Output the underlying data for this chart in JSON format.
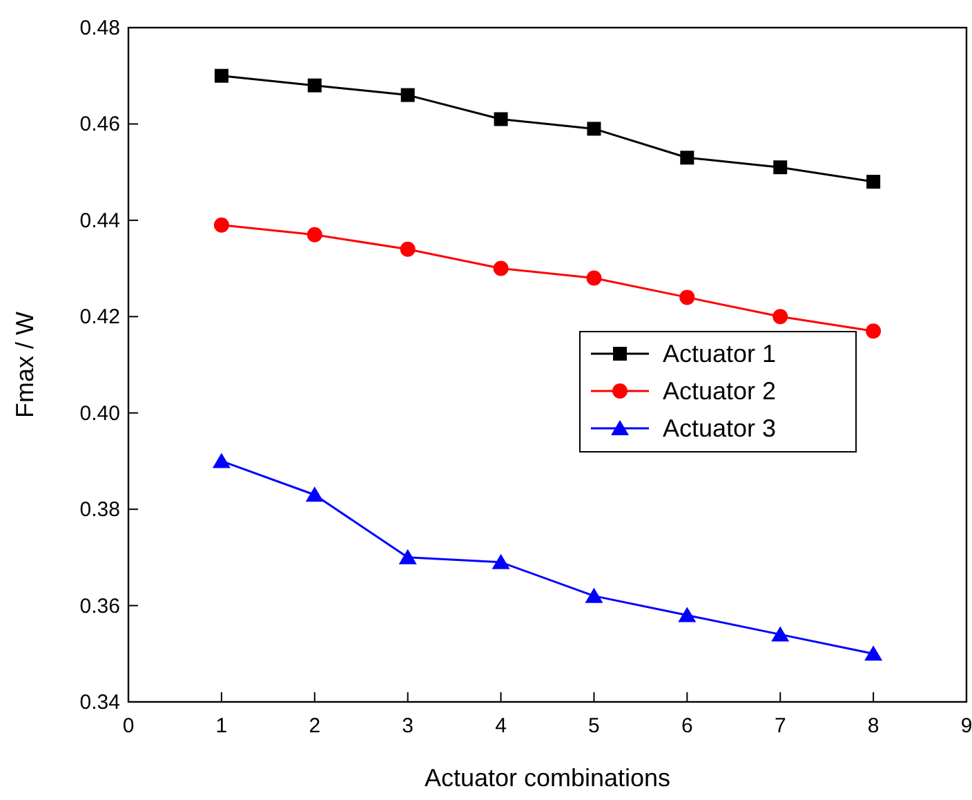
{
  "chart_data": {
    "type": "line",
    "xlabel": "Actuator combinations",
    "ylabel": "Fmax / W",
    "x": [
      1,
      2,
      3,
      4,
      5,
      6,
      7,
      8
    ],
    "xlim": [
      0,
      9
    ],
    "xticks": [
      0,
      1,
      2,
      3,
      4,
      5,
      6,
      7,
      8,
      9
    ],
    "ylim": [
      0.34,
      0.48
    ],
    "yticks": [
      {
        "value": 0.34,
        "label": "0.34"
      },
      {
        "value": 0.36,
        "label": "0.36"
      },
      {
        "value": 0.38,
        "label": "0.38"
      },
      {
        "value": 0.4,
        "label": "0.40"
      },
      {
        "value": 0.42,
        "label": "0.42"
      },
      {
        "value": 0.44,
        "label": "0.44"
      },
      {
        "value": 0.46,
        "label": "0.46"
      },
      {
        "value": 0.48,
        "label": "0.48"
      }
    ],
    "grid": false,
    "legend": "right",
    "line_style": "solid",
    "series": [
      {
        "name": "Actuator 1",
        "color": "#000000",
        "marker": "square",
        "values": [
          0.47,
          0.468,
          0.466,
          0.461,
          0.459,
          0.453,
          0.451,
          0.448
        ]
      },
      {
        "name": "Actuator 2",
        "color": "#ff0000",
        "marker": "circle",
        "values": [
          0.439,
          0.437,
          0.434,
          0.43,
          0.428,
          0.424,
          0.42,
          0.417
        ]
      },
      {
        "name": "Actuator 3",
        "color": "#0000ff",
        "marker": "triangle",
        "values": [
          0.39,
          0.383,
          0.37,
          0.369,
          0.362,
          0.358,
          0.354,
          0.35
        ]
      }
    ]
  }
}
